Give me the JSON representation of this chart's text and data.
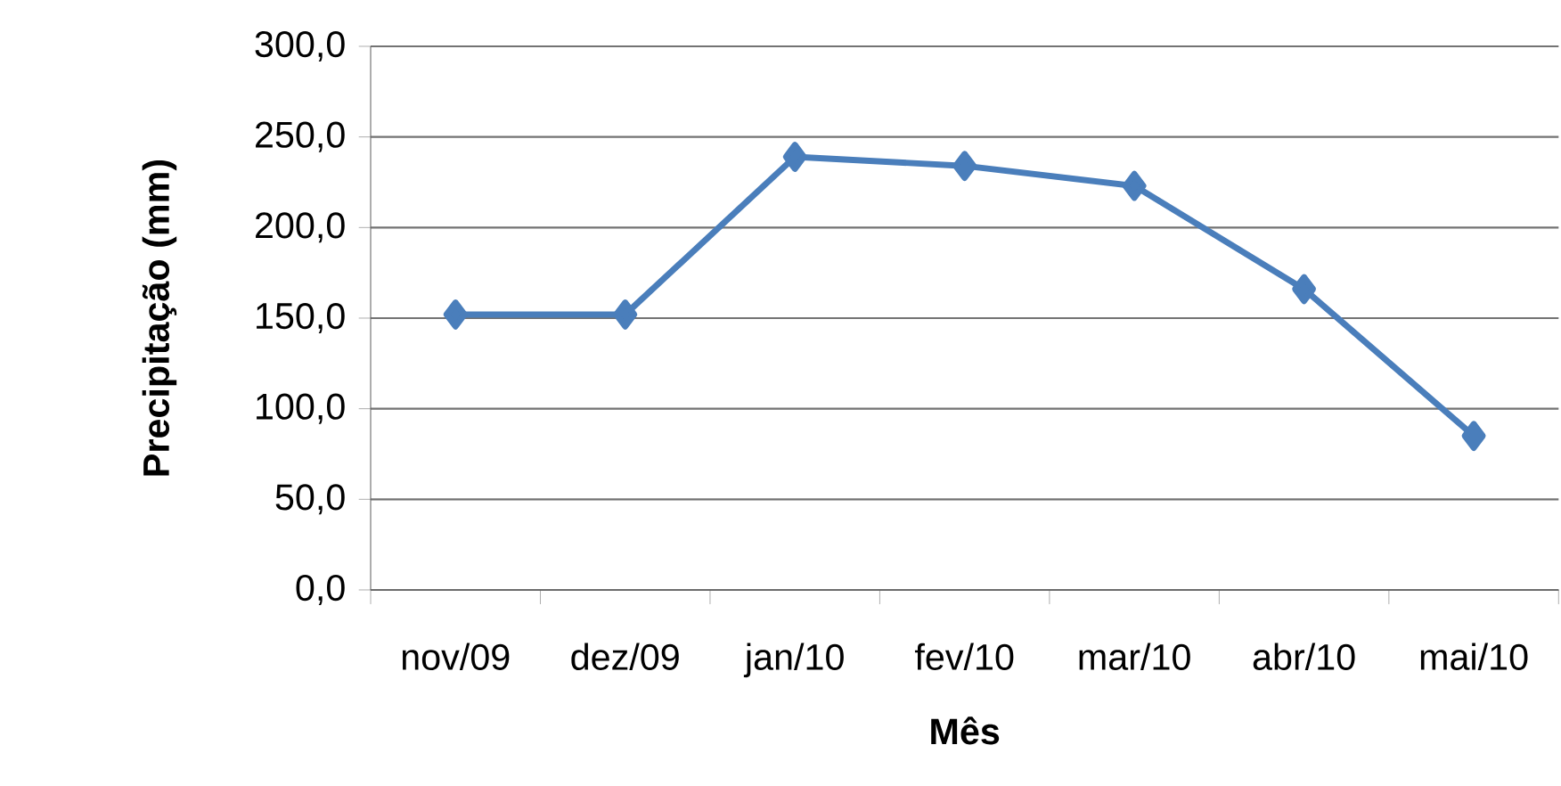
{
  "chart_data": {
    "type": "line",
    "xlabel": "Mês",
    "ylabel": "Precipitação (mm)",
    "categories": [
      "nov/09",
      "dez/09",
      "jan/10",
      "fev/10",
      "mar/10",
      "abr/10",
      "mai/10"
    ],
    "values": [
      152,
      152,
      239,
      234,
      223,
      166,
      85
    ],
    "color": "#4a7ebb",
    "marker": "diamond",
    "line_style": "solid",
    "grid": "y",
    "ylim": [
      0,
      300
    ],
    "yticks": [
      {
        "value": 0,
        "label": "0,0"
      },
      {
        "value": 50,
        "label": "50,0"
      },
      {
        "value": 100,
        "label": "100,0"
      },
      {
        "value": 150,
        "label": "150,0"
      },
      {
        "value": 200,
        "label": "200,0"
      },
      {
        "value": 250,
        "label": "250,0"
      },
      {
        "value": 300,
        "label": "300,0"
      }
    ]
  }
}
